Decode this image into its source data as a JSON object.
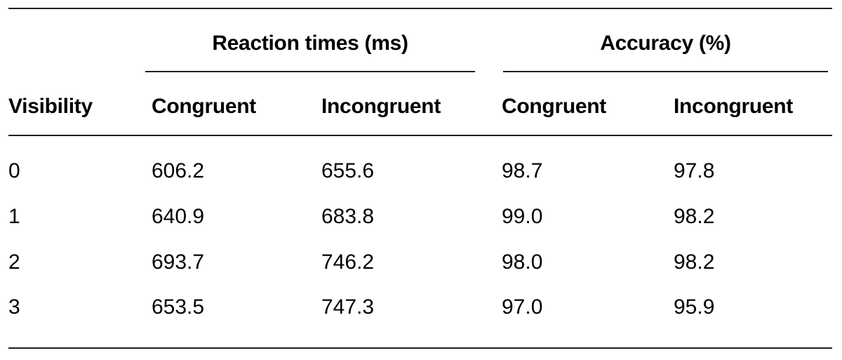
{
  "colors": {
    "text": "#000000",
    "rule": "#1f1f1f",
    "background": "#ffffff"
  },
  "table": {
    "group_headers": [
      {
        "label": "Reaction times (ms)"
      },
      {
        "label": "Accuracy (%)"
      }
    ],
    "visibility_header": "Visibility",
    "column_headers": [
      "Congruent",
      "Incongruent",
      "Congruent",
      "Incongruent"
    ],
    "rows": [
      {
        "visibility": "0",
        "values": [
          "606.2",
          "655.6",
          "98.7",
          "97.8"
        ]
      },
      {
        "visibility": "1",
        "values": [
          "640.9",
          "683.8",
          "99.0",
          "98.2"
        ]
      },
      {
        "visibility": "2",
        "values": [
          "693.7",
          "746.2",
          "98.0",
          "98.2"
        ]
      },
      {
        "visibility": "3",
        "values": [
          "653.5",
          "747.3",
          "97.0",
          "95.9"
        ]
      }
    ]
  }
}
